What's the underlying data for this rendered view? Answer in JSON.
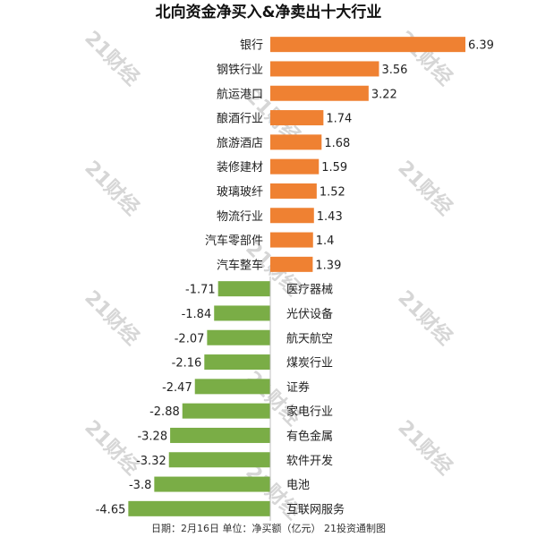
{
  "chart_data": {
    "type": "bar",
    "orientation": "horizontal",
    "title": "北向资金净买入&净卖出十大行业",
    "footer": "日期：2月16日 单位：净买额（亿元） 21投资通制图",
    "watermark": "21财经",
    "xlim": [
      -4.65,
      6.39
    ],
    "grid": false,
    "colors": {
      "positive": "#ef8132",
      "negative": "#7aad46"
    },
    "categories": [
      "银行",
      "钢铁行业",
      "航运港口",
      "酿酒行业",
      "旅游酒店",
      "装修建材",
      "玻璃玻纤",
      "物流行业",
      "汽车零部件",
      "汽车整车",
      "医疗器械",
      "光伏设备",
      "航天航空",
      "煤炭行业",
      "证券",
      "家电行业",
      "有色金属",
      "软件开发",
      "电池",
      "互联网服务"
    ],
    "values": [
      6.39,
      3.56,
      3.22,
      1.74,
      1.68,
      1.59,
      1.52,
      1.43,
      1.4,
      1.39,
      -1.71,
      -1.84,
      -2.07,
      -2.16,
      -2.47,
      -2.88,
      -3.28,
      -3.32,
      -3.8,
      -4.65
    ],
    "value_labels": [
      "6.39",
      "3.56",
      "3.22",
      "1.74",
      "1.68",
      "1.59",
      "1.52",
      "1.43",
      "1.4",
      "1.39",
      "-1.71",
      "-1.84",
      "-2.07",
      "-2.16",
      "-2.47",
      "-2.88",
      "-3.28",
      "-3.32",
      "-3.8",
      "-4.65"
    ]
  }
}
